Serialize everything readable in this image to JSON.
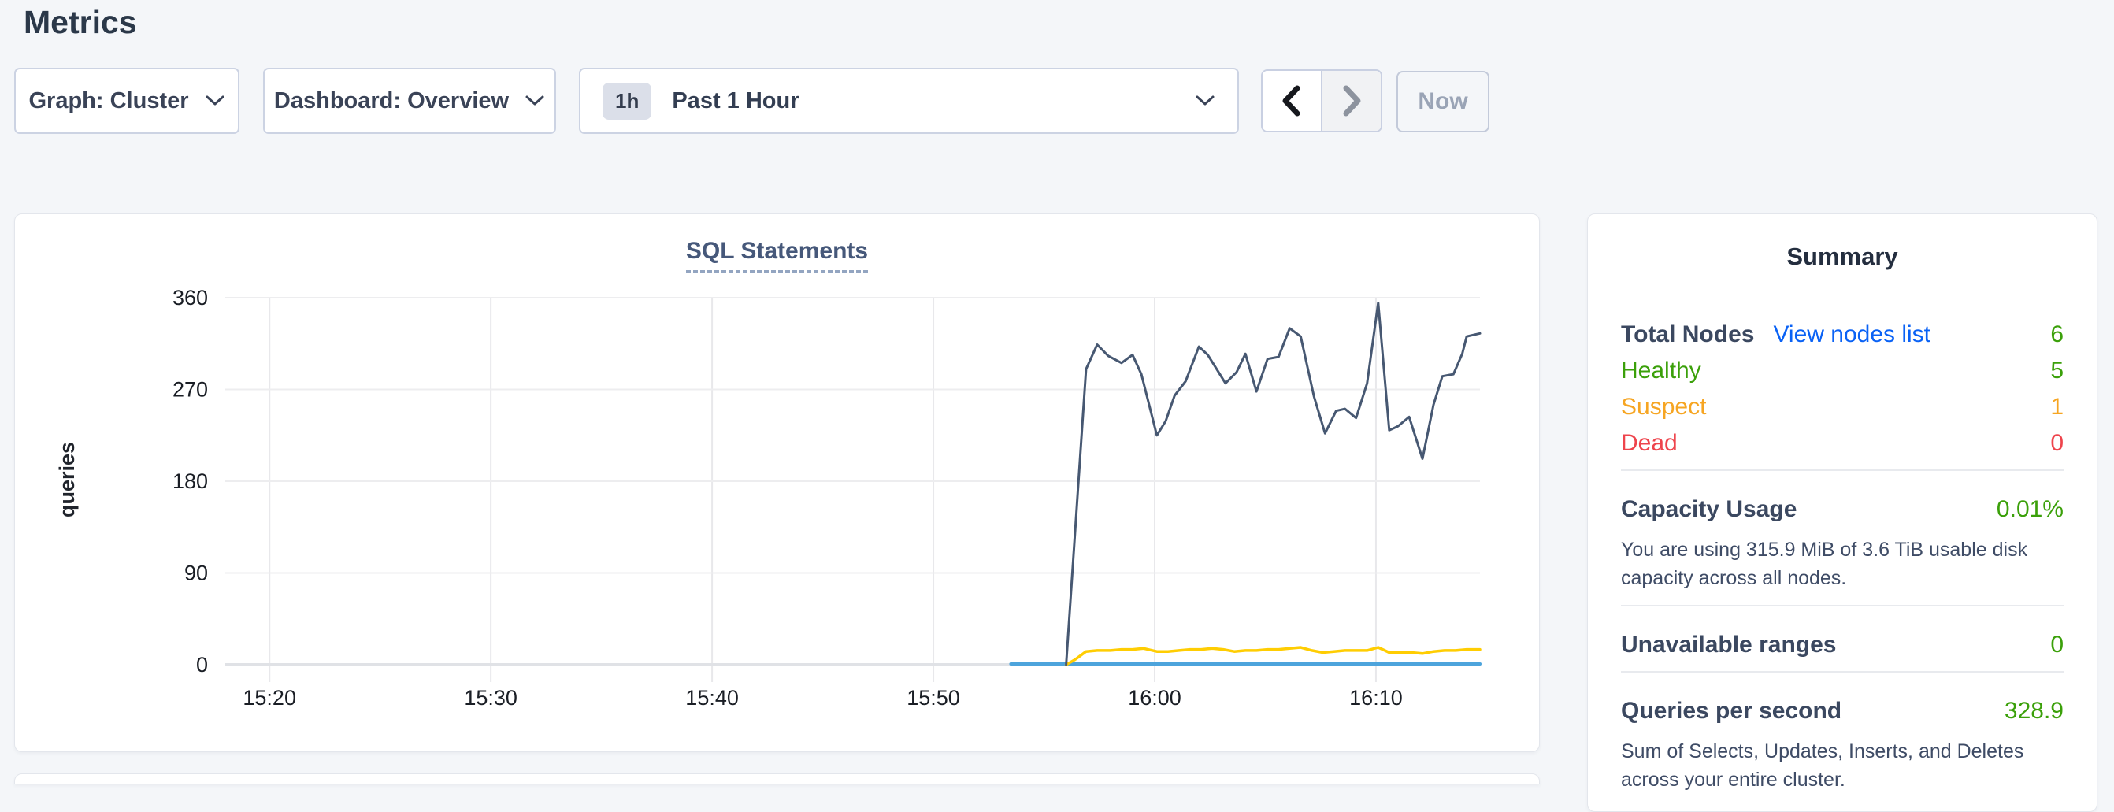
{
  "page": {
    "title": "Metrics"
  },
  "toolbar": {
    "graph_dropdown": {
      "label": "Graph: Cluster"
    },
    "dashboard_dropdown": {
      "label": "Dashboard: Overview"
    },
    "time_selector": {
      "badge": "1h",
      "label": "Past 1 Hour"
    },
    "prev_label": "previous time window",
    "next_label": "next time window",
    "now_button": "Now"
  },
  "chart_card": {
    "title": "SQL Statements",
    "ylabel": "queries"
  },
  "chart_data": {
    "type": "line",
    "title": "SQL Statements",
    "xlabel": "",
    "ylabel": "queries",
    "x_unit": "minutes-of-day (e.g. 920 = 15:20)",
    "xlim": [
      918,
      974.7
    ],
    "ylim": [
      0,
      360
    ],
    "y_ticks": [
      0,
      90,
      180,
      270,
      360
    ],
    "x_ticks": [
      {
        "t": 920,
        "label": "15:20"
      },
      {
        "t": 930,
        "label": "15:30"
      },
      {
        "t": 940,
        "label": "15:40"
      },
      {
        "t": 950,
        "label": "15:50"
      },
      {
        "t": 960,
        "label": "16:00"
      },
      {
        "t": 970,
        "label": "16:10"
      }
    ],
    "grid": true,
    "legend": "none",
    "series": [
      {
        "name": "blue-flat",
        "color": "#4da4dc",
        "width": 4,
        "points": [
          [
            953.5,
            0.8
          ],
          [
            974.7,
            0.8
          ]
        ]
      },
      {
        "name": "yellow",
        "color": "#ffcd02",
        "width": 3.5,
        "points": [
          [
            956.0,
            0
          ],
          [
            956.4,
            5
          ],
          [
            956.9,
            13
          ],
          [
            957.4,
            14
          ],
          [
            958.0,
            14
          ],
          [
            958.5,
            15
          ],
          [
            959.0,
            15
          ],
          [
            959.5,
            16
          ],
          [
            960.1,
            13
          ],
          [
            960.6,
            13
          ],
          [
            961.1,
            14
          ],
          [
            961.6,
            15
          ],
          [
            962.1,
            15
          ],
          [
            962.6,
            16
          ],
          [
            963.1,
            15
          ],
          [
            963.6,
            13
          ],
          [
            964.1,
            14
          ],
          [
            964.6,
            14
          ],
          [
            965.1,
            15
          ],
          [
            965.6,
            15
          ],
          [
            966.1,
            16
          ],
          [
            966.6,
            17
          ],
          [
            967.1,
            14
          ],
          [
            967.6,
            12
          ],
          [
            968.1,
            13
          ],
          [
            968.6,
            14
          ],
          [
            969.1,
            14
          ],
          [
            969.6,
            14
          ],
          [
            970.1,
            17
          ],
          [
            970.6,
            12
          ],
          [
            971.1,
            12
          ],
          [
            971.6,
            12
          ],
          [
            972.1,
            11
          ],
          [
            972.6,
            13
          ],
          [
            973.1,
            14
          ],
          [
            973.6,
            14
          ],
          [
            974.1,
            15
          ],
          [
            974.7,
            15
          ]
        ]
      },
      {
        "name": "navy",
        "color": "#475872",
        "width": 3,
        "points": [
          [
            956.0,
            0
          ],
          [
            956.9,
            290
          ],
          [
            957.4,
            314
          ],
          [
            957.9,
            303
          ],
          [
            958.5,
            296
          ],
          [
            959.0,
            304
          ],
          [
            959.4,
            285
          ],
          [
            960.1,
            225
          ],
          [
            960.5,
            239
          ],
          [
            960.9,
            264
          ],
          [
            961.4,
            278
          ],
          [
            962.0,
            312
          ],
          [
            962.4,
            304
          ],
          [
            962.8,
            290
          ],
          [
            963.2,
            276
          ],
          [
            963.7,
            287
          ],
          [
            964.1,
            305
          ],
          [
            964.6,
            268
          ],
          [
            965.1,
            300
          ],
          [
            965.6,
            302
          ],
          [
            966.1,
            330
          ],
          [
            966.6,
            322
          ],
          [
            967.2,
            263
          ],
          [
            967.7,
            227
          ],
          [
            968.2,
            249
          ],
          [
            968.6,
            251
          ],
          [
            969.1,
            242
          ],
          [
            969.6,
            276
          ],
          [
            970.1,
            355
          ],
          [
            970.6,
            230
          ],
          [
            971.0,
            234
          ],
          [
            971.5,
            243
          ],
          [
            972.1,
            202
          ],
          [
            972.6,
            255
          ],
          [
            973.0,
            283
          ],
          [
            973.5,
            285
          ],
          [
            973.9,
            305
          ],
          [
            974.1,
            322
          ],
          [
            974.7,
            325
          ]
        ]
      }
    ]
  },
  "summary": {
    "title": "Summary",
    "total_nodes": {
      "label": "Total Nodes",
      "link": "View nodes list",
      "value": "6"
    },
    "healthy": {
      "label": "Healthy",
      "value": "5"
    },
    "suspect": {
      "label": "Suspect",
      "value": "1"
    },
    "dead": {
      "label": "Dead",
      "value": "0"
    },
    "capacity": {
      "label": "Capacity Usage",
      "value": "0.01%",
      "description": "You are using 315.9 MiB of 3.6 TiB usable disk capacity across all nodes."
    },
    "unavailable": {
      "label": "Unavailable ranges",
      "value": "0"
    },
    "qps": {
      "label": "Queries per second",
      "value": "328.9",
      "description": "Sum of Selects, Updates, Inserts, and Deletes across your entire cluster."
    }
  },
  "colors": {
    "page_background": "#f4f6f9",
    "link_blue": "#0a62f5",
    "status_green": "#3ba00a",
    "status_orange": "#f6a522",
    "status_red": "#ee444c",
    "line_navy": "#475872",
    "line_yellow": "#ffcd02",
    "line_blue": "#4da4dc"
  }
}
